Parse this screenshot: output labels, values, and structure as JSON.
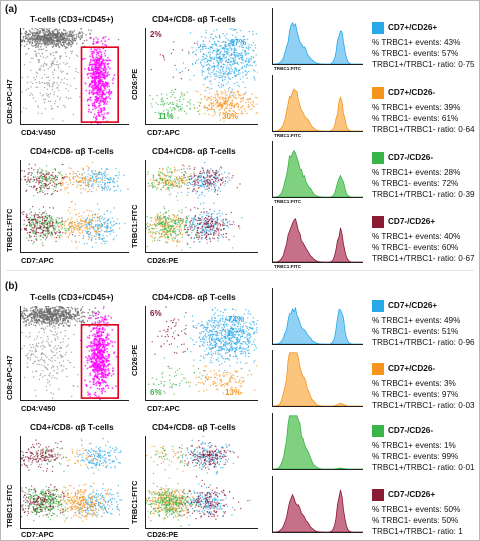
{
  "panels": [
    {
      "tag": "(a)",
      "gate_title": "T-cells (CD3+/CD45+)",
      "gate_xlabel": "CD4:V450",
      "gate_ylabel": "CD8:APC-H7",
      "quad_title": "CD4+/CD8- αβ T-cells",
      "quad_xlabel": "CD7:APC",
      "quad_ylabel": "CD26:PE",
      "quad_pct": {
        "tl": "2%",
        "tr": "67%",
        "bl": "11%",
        "br": "30%"
      },
      "trbc_cd7_title": "CD4+/CD8- αβ T-cells",
      "trbc_cd7_xlabel": "CD7:APC",
      "trbc_cd7_ylabel": "TRBC1:FITC",
      "trbc_cd26_title": "CD4+/CD8- αβ T-cells",
      "trbc_cd26_xlabel": "CD26:PE",
      "trbc_cd26_ylabel": "TRBC1:FITC",
      "groups": [
        {
          "name": "CD7+/CD26+",
          "color": "#29a8e8",
          "fill": "#8fd0f4",
          "pos_label": "% TRBC1+ events: 43%",
          "neg_label": "% TRBC1- events: 57%",
          "ratio_label": "TRBC1+/TRBC1- ratio: 0·75",
          "pos": 43,
          "neg": 57,
          "ratio": 0.75,
          "hist_xlabel": "TRBC1:FITC"
        },
        {
          "name": "CD7+/CD26-",
          "color": "#f7941d",
          "fill": "#fbc57e",
          "pos_label": "% TRBC1+ events: 39%",
          "neg_label": "% TRBC1- events: 61%",
          "ratio_label": "TRBC1+/TRBC1- ratio: 0·64",
          "pos": 39,
          "neg": 61,
          "ratio": 0.64,
          "hist_xlabel": "TRBC1:FITC"
        },
        {
          "name": "CD7-/CD26-",
          "color": "#39b54a",
          "fill": "#7fd17f",
          "pos_label": "% TRBC1+ events: 28%",
          "neg_label": "% TRBC1- events: 72%",
          "ratio_label": "TRBC1+/TRBC1- ratio: 0·39",
          "pos": 28,
          "neg": 72,
          "ratio": 0.39,
          "hist_xlabel": "TRBC1:FITC"
        },
        {
          "name": "CD7-/CD26+",
          "color": "#8b1a35",
          "fill": "#c6708a",
          "pos_label": "% TRBC1+ events: 40%",
          "neg_label": "% TRBC1- events: 60%",
          "ratio_label": "TRBC1+/TRBC1- ratio: 0·67",
          "pos": 40,
          "neg": 60,
          "ratio": 0.67,
          "hist_xlabel": "TRBC1:FITC"
        }
      ]
    },
    {
      "tag": "(b)",
      "gate_title": "T-cells (CD3+/CD45+)",
      "gate_xlabel": "CD4:V450",
      "gate_ylabel": "CD8:APC-H7",
      "quad_title": "CD4+/CD8- αβ T-cells",
      "quad_xlabel": "CD7:APC",
      "quad_ylabel": "CD26:PE",
      "quad_pct": {
        "tl": "6%",
        "tr": "74%",
        "bl": "6%",
        "br": "13%"
      },
      "trbc_cd7_title": "CD4+/CD8- αβ T-cells",
      "trbc_cd7_xlabel": "CD7:APC",
      "trbc_cd7_ylabel": "TRBC1:FITC",
      "trbc_cd26_title": "CD4+/CD8- αβ T-cells",
      "trbc_cd26_xlabel": "CD26:PE",
      "trbc_cd26_ylabel": "TRBC1:FITC",
      "groups": [
        {
          "name": "CD7+/CD26+",
          "color": "#29a8e8",
          "fill": "#8fd0f4",
          "pos_label": "% TRBC1+ events: 49%",
          "neg_label": "% TRBC1- events: 51%",
          "ratio_label": "TRBC1+/TRBC1- ratio: 0·96",
          "pos": 49,
          "neg": 51,
          "ratio": 0.96,
          "hist_xlabel": ""
        },
        {
          "name": "CD7+/CD26-",
          "color": "#f7941d",
          "fill": "#fbc57e",
          "pos_label": "% TRBC1+ events: 3%",
          "neg_label": "% TRBC1- events: 97%",
          "ratio_label": "TRBC1+/TRBC1- ratio: 0·03",
          "pos": 3,
          "neg": 97,
          "ratio": 0.03,
          "hist_xlabel": ""
        },
        {
          "name": "CD7-/CD26-",
          "color": "#39b54a",
          "fill": "#7fd17f",
          "pos_label": "% TRBC1+ events: 1%",
          "neg_label": "% TRBC1- events: 99%",
          "ratio_label": "TRBC1+/TRBC1- ratio: 0·01",
          "pos": 1,
          "neg": 99,
          "ratio": 0.01,
          "hist_xlabel": ""
        },
        {
          "name": "CD7-/CD26+",
          "color": "#8b1a35",
          "fill": "#c6708a",
          "pos_label": "% TRBC1+ events: 50%",
          "neg_label": "% TRBC1- events: 50%",
          "ratio_label": "TRBC1+/TRBC1- ratio: 1",
          "pos": 50,
          "neg": 50,
          "ratio": 1,
          "hist_xlabel": ""
        }
      ]
    }
  ],
  "colors": {
    "gray": "#555555",
    "magenta": "#ff00ff",
    "gate_box": "#e0001b",
    "axis": "#222222"
  }
}
